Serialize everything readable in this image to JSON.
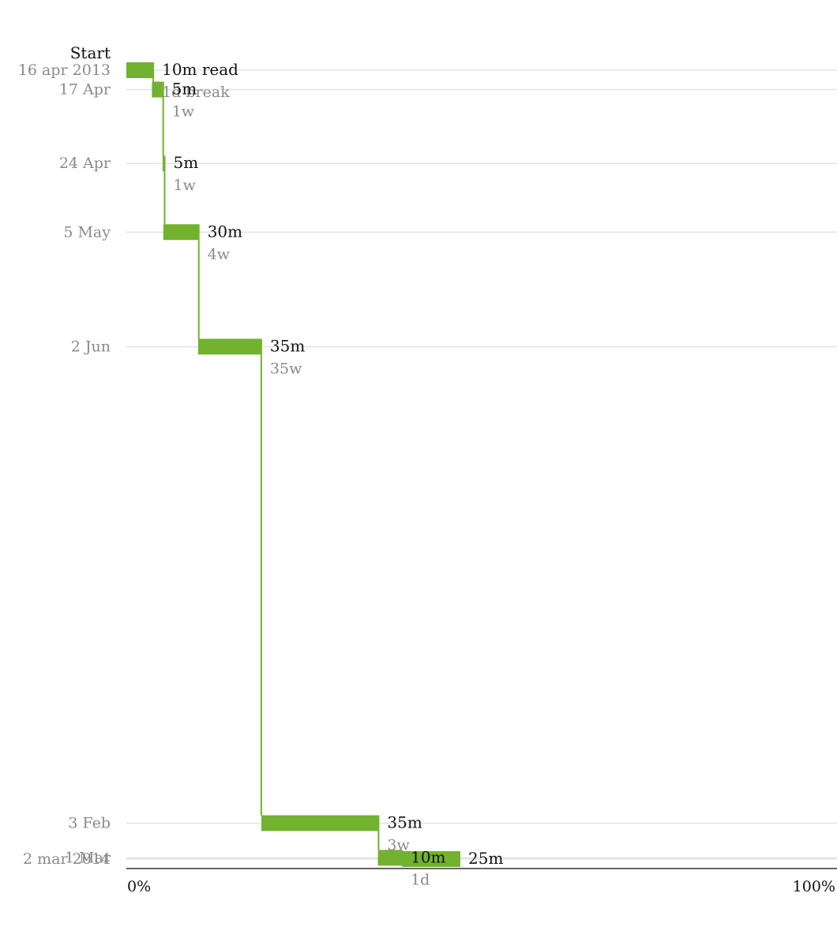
{
  "chart_data": {
    "type": "bar",
    "start_label": "Start",
    "accent_color": "#72b22e",
    "x_axis": {
      "min_label": "0%",
      "max_label": "100%",
      "range": [
        0,
        100
      ]
    },
    "sessions": [
      {
        "date": "2013-04-16",
        "date_label": "16 apr 2013",
        "progress_start": 0.0,
        "progress_end": 3.9,
        "duration_label": "10m read",
        "gap_label": "1d break"
      },
      {
        "date": "2013-04-17",
        "date_label": "17 Apr",
        "progress_start": 3.6,
        "progress_end": 5.3,
        "duration_label": "5m",
        "gap_label": "1w"
      },
      {
        "date": "2013-04-24",
        "date_label": "24 Apr",
        "progress_start": 5.1,
        "progress_end": 5.5,
        "duration_label": "5m",
        "gap_label": "1w"
      },
      {
        "date": "2013-05-05",
        "date_label": "5 May",
        "progress_start": 5.2,
        "progress_end": 10.3,
        "duration_label": "30m",
        "gap_label": "4w"
      },
      {
        "date": "2013-06-02",
        "date_label": "2 Jun",
        "progress_start": 10.1,
        "progress_end": 19.1,
        "duration_label": "35m",
        "gap_label": "35w"
      },
      {
        "date": "2014-02-03",
        "date_label": "3 Feb",
        "progress_start": 19.0,
        "progress_end": 35.6,
        "duration_label": "35m",
        "gap_label": "3w"
      },
      {
        "date": "2014-03-01",
        "date_label": "1 Mar",
        "progress_start": 35.4,
        "progress_end": 38.9,
        "duration_label": "10m",
        "gap_label": "1d"
      },
      {
        "date": "2014-03-02",
        "date_label": "2 mar 2014",
        "progress_start": 38.8,
        "progress_end": 47.0,
        "duration_label": "25m",
        "gap_label": ""
      }
    ]
  }
}
